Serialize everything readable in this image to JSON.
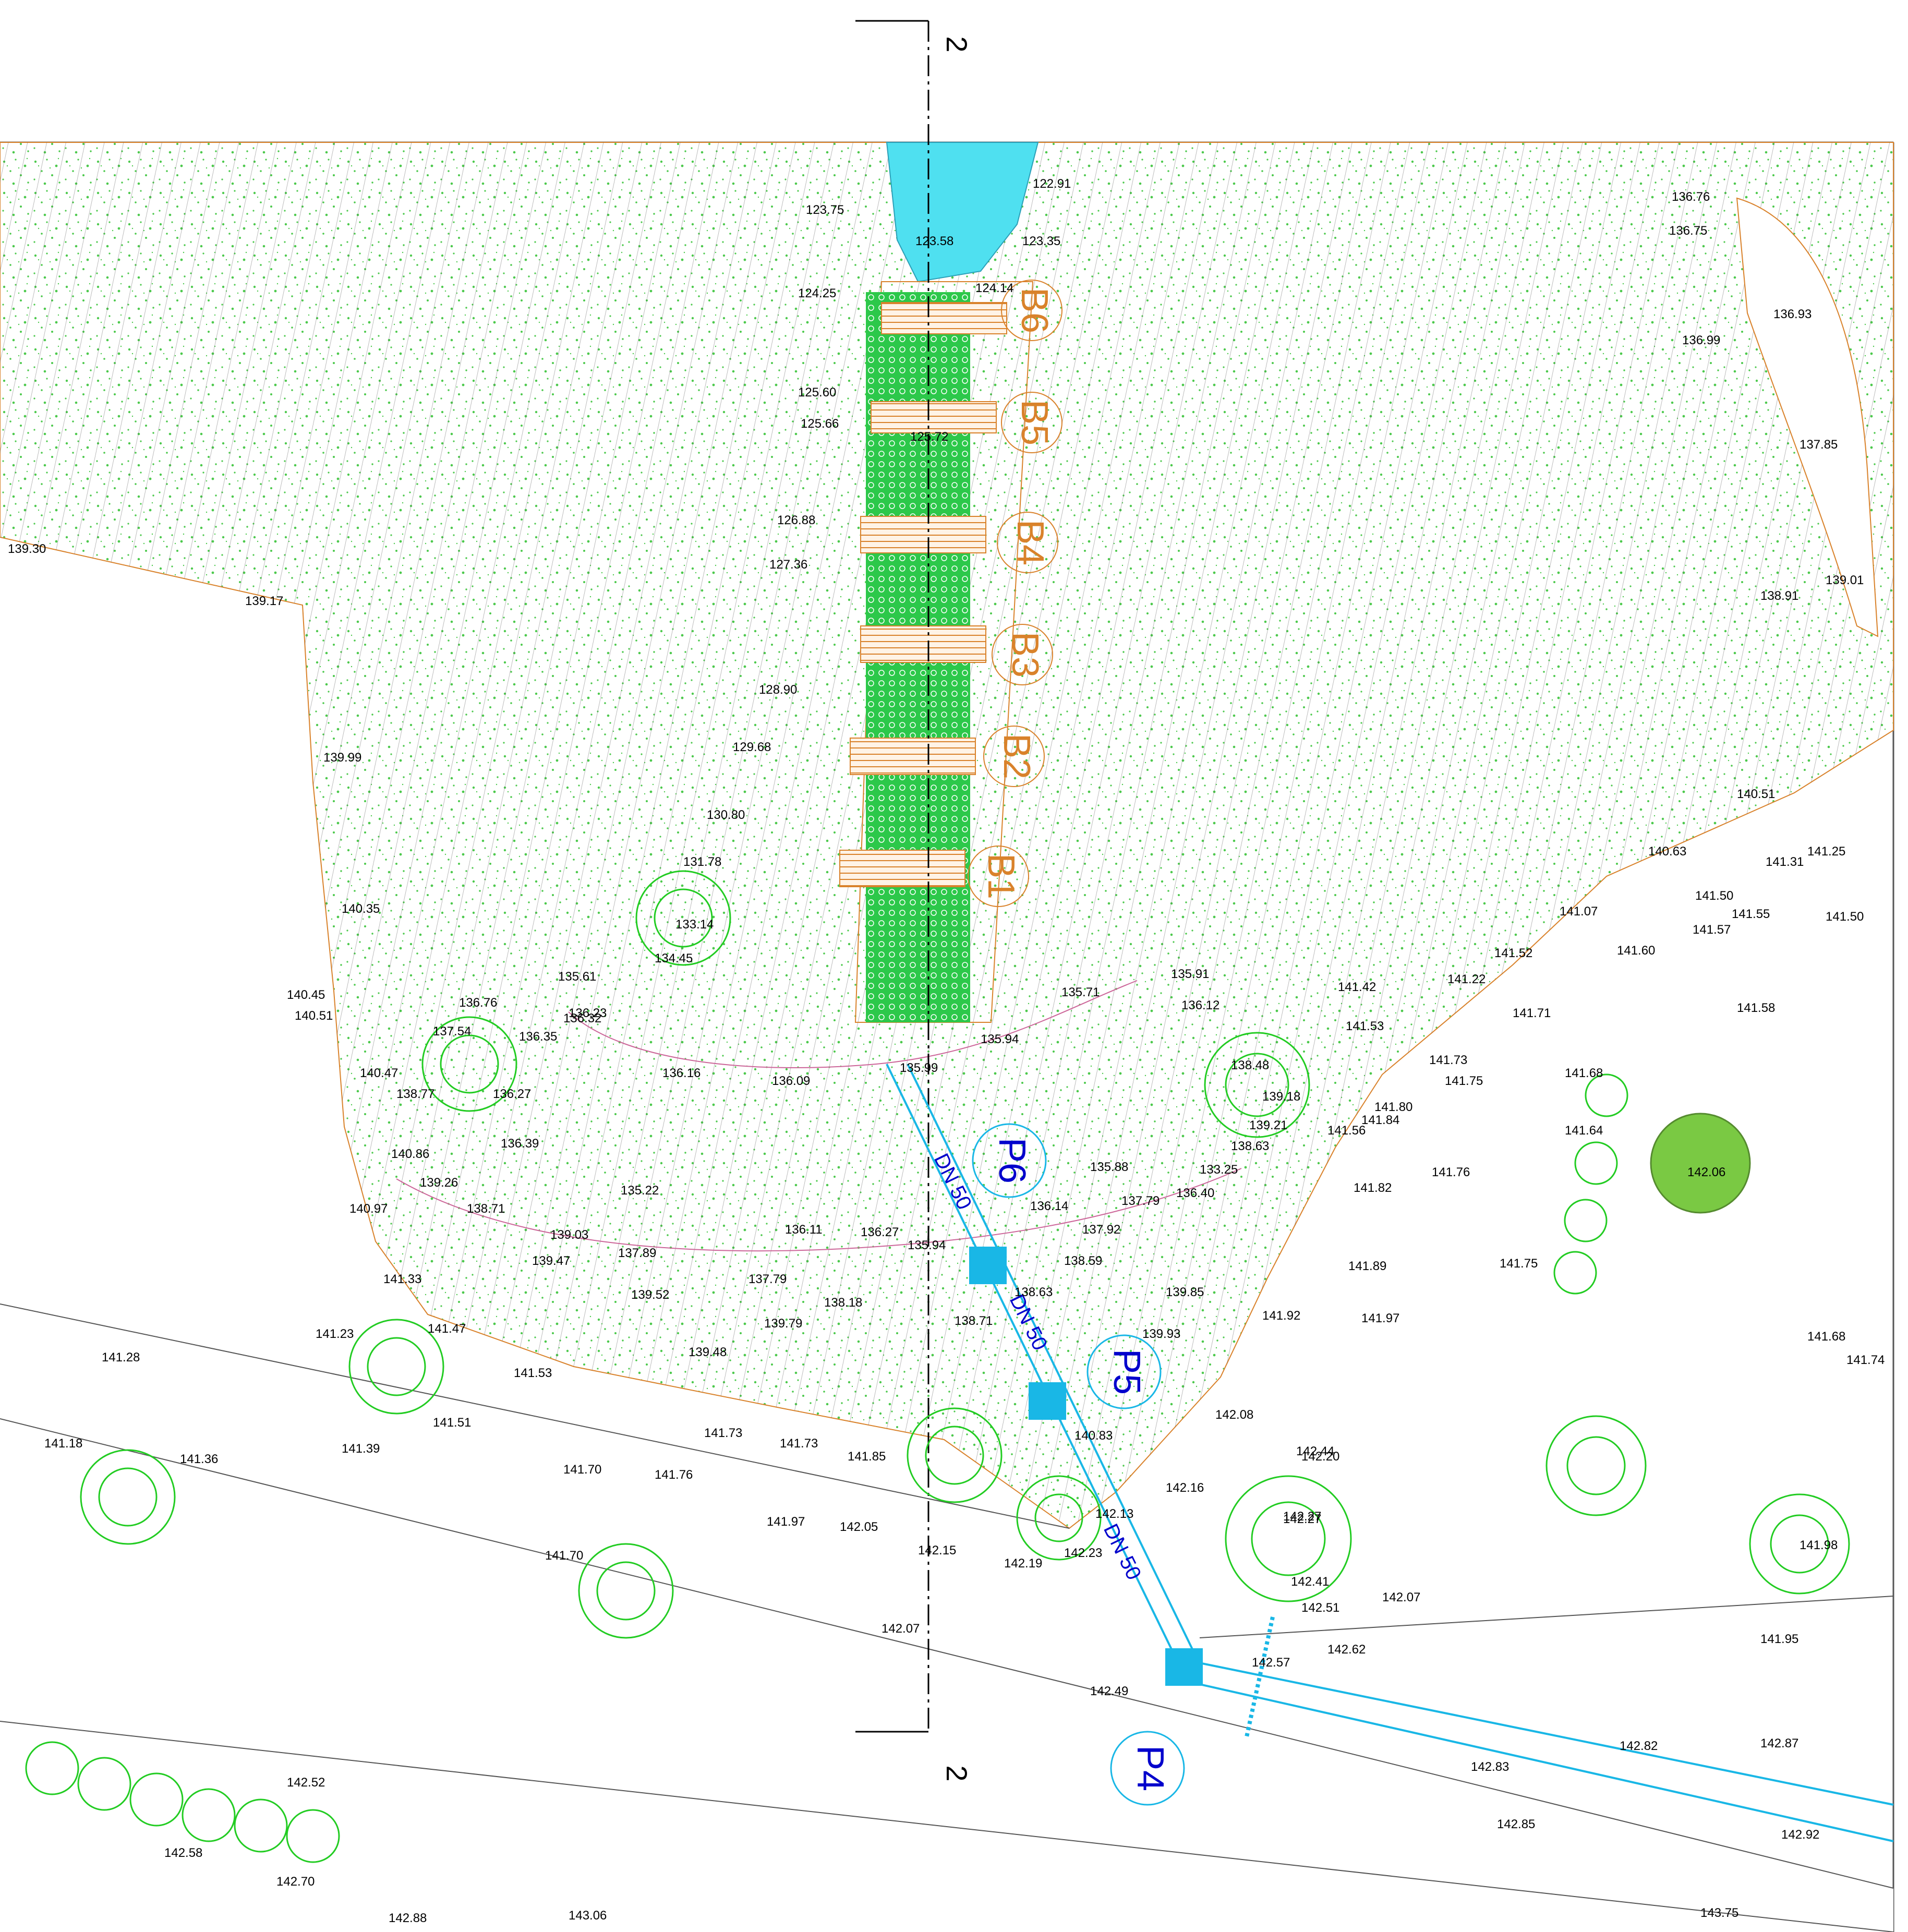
{
  "drawing": {
    "section_marker": "2",
    "colors": {
      "vegetation": "#4cc94c",
      "contour": "#555555",
      "basin": "#d9822b",
      "pipe": "#19b7e6",
      "label_blue": "#0000cc",
      "water": "#4fe0f0",
      "tree": "#22cc22"
    }
  },
  "basins": [
    {
      "label": "B6"
    },
    {
      "label": "B5"
    },
    {
      "label": "B4"
    },
    {
      "label": "B3"
    },
    {
      "label": "B2"
    },
    {
      "label": "B1"
    }
  ],
  "stations": [
    {
      "label": "P6"
    },
    {
      "label": "P5"
    },
    {
      "label": "P4"
    }
  ],
  "pipe_labels": [
    "DN 50",
    "DN 50",
    "DN 50"
  ],
  "elevations": [
    "122.91",
    "123.75",
    "123.35",
    "123.58",
    "124.25",
    "124.14",
    "125.60",
    "125.66",
    "125.72",
    "126.88",
    "127.36",
    "128.90",
    "129.68",
    "130.80",
    "131.78",
    "133.14",
    "134.45",
    "135.61",
    "136.32",
    "136.23",
    "135.71",
    "135.91",
    "136.12",
    "135.94",
    "135.99",
    "136.16",
    "136.09",
    "136.35",
    "136.76",
    "137.54",
    "136.27",
    "136.39",
    "135.22",
    "136.11",
    "136.27",
    "135.94",
    "136.14",
    "135.88",
    "137.79",
    "136.40",
    "133.25",
    "138.63",
    "139.21",
    "139.18",
    "138.48",
    "139.03",
    "137.89",
    "137.79",
    "138.18",
    "139.47",
    "139.52",
    "139.79",
    "139.48",
    "138.71",
    "138.63",
    "137.92",
    "138.59",
    "139.85",
    "139.93",
    "138.71",
    "140.47",
    "138.77",
    "140.86",
    "139.26",
    "140.97",
    "141.33",
    "141.23",
    "141.47",
    "141.28",
    "141.51",
    "141.53",
    "141.18",
    "141.36",
    "141.39",
    "141.70",
    "141.76",
    "141.73",
    "141.73",
    "141.85",
    "141.97",
    "142.05",
    "142.15",
    "142.19",
    "142.23",
    "142.13",
    "142.27",
    "140.83",
    "142.08",
    "142.16",
    "141.92",
    "141.70",
    "142.07",
    "142.49",
    "142.52",
    "142.58",
    "142.70",
    "142.88",
    "143.06",
    "142.44",
    "142.20",
    "142.27",
    "142.41",
    "142.51",
    "142.57",
    "142.62",
    "142.07",
    "142.83",
    "142.82",
    "142.87",
    "142.85",
    "142.92",
    "143.75",
    "141.95",
    "141.98",
    "141.68",
    "141.74",
    "141.97",
    "141.89",
    "141.75",
    "141.82",
    "141.56",
    "141.84",
    "141.80",
    "141.76",
    "141.73",
    "141.75",
    "141.64",
    "141.68",
    "142.06",
    "141.58",
    "141.71",
    "141.60",
    "141.22",
    "141.52",
    "141.07",
    "141.42",
    "141.53",
    "141.50",
    "141.57",
    "141.55",
    "141.50",
    "141.31",
    "141.25",
    "140.63",
    "140.51",
    "138.91",
    "139.01",
    "137.85",
    "136.93",
    "136.99",
    "136.76",
    "136.75",
    "139.30",
    "139.17",
    "139.99",
    "140.35",
    "140.45",
    "140.51"
  ]
}
